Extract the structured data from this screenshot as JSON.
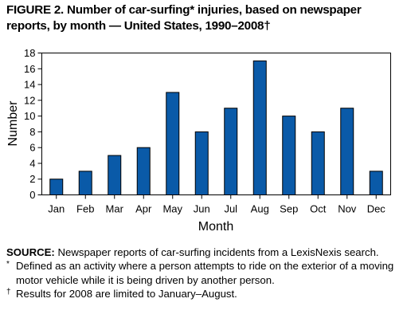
{
  "figure": {
    "title_line1": "FIGURE 2. Number of car-surfing* injuries, based on newspaper",
    "title_line2": "reports, by month — United States, 1990–2008†"
  },
  "chart_data": {
    "type": "bar",
    "categories": [
      "Jan",
      "Feb",
      "Mar",
      "Apr",
      "May",
      "Jun",
      "Jul",
      "Aug",
      "Sep",
      "Oct",
      "Nov",
      "Dec"
    ],
    "values": [
      2,
      3,
      5,
      6,
      13,
      8,
      11,
      17,
      10,
      8,
      11,
      3
    ],
    "xlabel": "Month",
    "ylabel": "Number",
    "ylim": [
      0,
      18
    ],
    "yticks": [
      0,
      2,
      4,
      6,
      8,
      10,
      12,
      14,
      16,
      18
    ],
    "bar_color": "#0a5aa8",
    "grid": false
  },
  "notes": {
    "source_label": "SOURCE:",
    "source_text": " Newspaper reports of car-surfing incidents from a LexisNexis search.",
    "footnote1_mark": "*",
    "footnote1_text": "Defined as an activity where a person attempts to ride on the exterior of a moving motor vehicle while it is being driven by another person.",
    "footnote2_mark": "†",
    "footnote2_text": "Results for 2008 are limited to January–August."
  }
}
